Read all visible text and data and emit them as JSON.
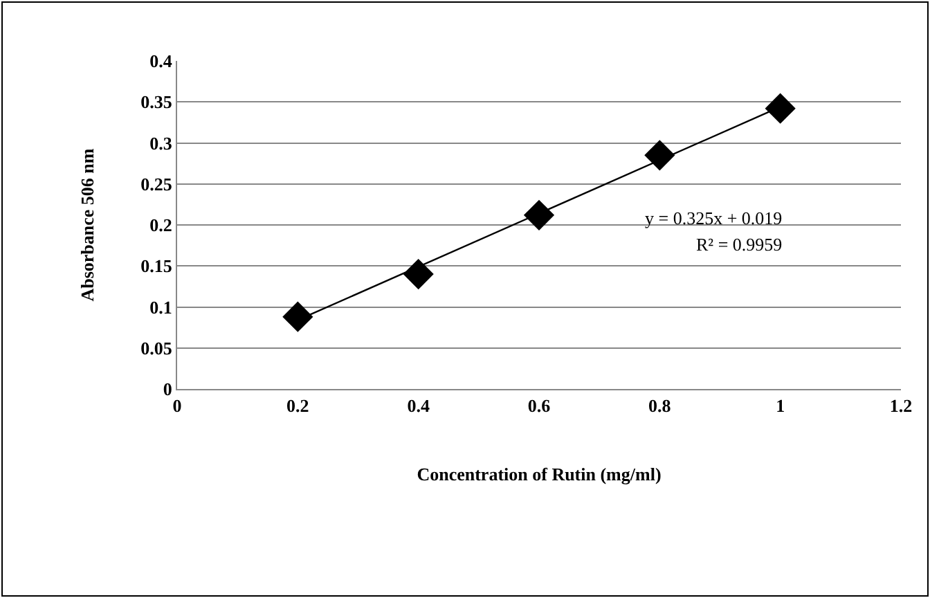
{
  "chart_data": {
    "type": "scatter",
    "xlabel": "Concentration of Rutin (mg/ml)",
    "ylabel": "Absorbance 506 nm",
    "x": [
      0.2,
      0.4,
      0.6,
      0.8,
      1.0
    ],
    "series": [
      {
        "type": "scatter",
        "color": "#000000",
        "values": [
          0.088,
          0.14,
          0.212,
          0.285,
          0.342
        ],
        "marker": "diamond"
      },
      {
        "type": "line",
        "color": "#000000",
        "x": [
          0.2,
          1.0
        ],
        "values": [
          0.084,
          0.344
        ],
        "marker": "none",
        "line_style": "solid"
      }
    ],
    "xlim": [
      0,
      1.2
    ],
    "xticks": [
      0,
      0.2,
      0.4,
      0.6,
      0.8,
      1,
      1.2
    ],
    "ylim": [
      0,
      0.4
    ],
    "yticks": [
      0,
      0.05,
      0.1,
      0.15,
      0.2,
      0.25,
      0.3,
      0.35,
      0.4
    ],
    "grid": "y",
    "annotations": [
      "y = 0.325x + 0.019",
      "R² = 0.9959"
    ]
  }
}
